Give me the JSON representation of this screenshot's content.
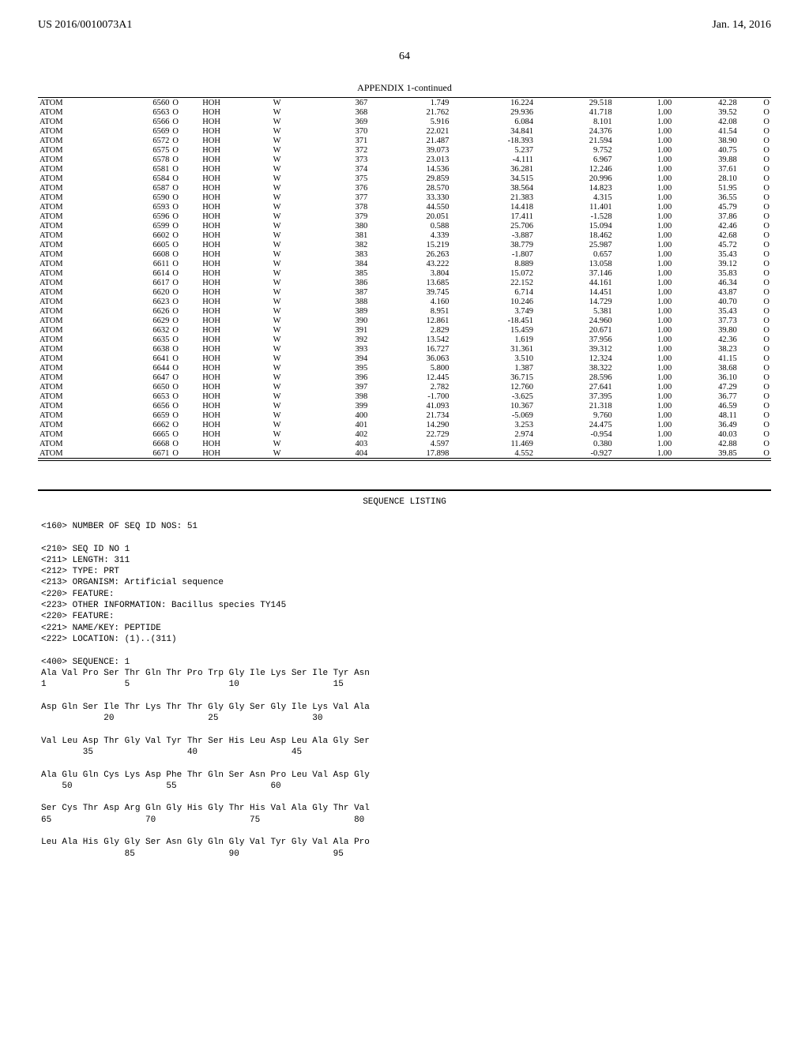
{
  "header": {
    "pub_number": "US 2016/0010073A1",
    "pub_date": "Jan. 14, 2016",
    "page_number": "64"
  },
  "appendix": {
    "title": "APPENDIX 1-continued",
    "rows": [
      [
        "ATOM",
        "6560",
        "O",
        "HOH",
        "W",
        "367",
        "1.749",
        "16.224",
        "29.518",
        "1.00",
        "42.28",
        "O"
      ],
      [
        "ATOM",
        "6563",
        "O",
        "HOH",
        "W",
        "368",
        "21.762",
        "29.936",
        "41.718",
        "1.00",
        "39.52",
        "O"
      ],
      [
        "ATOM",
        "6566",
        "O",
        "HOH",
        "W",
        "369",
        "5.916",
        "6.084",
        "8.101",
        "1.00",
        "42.08",
        "O"
      ],
      [
        "ATOM",
        "6569",
        "O",
        "HOH",
        "W",
        "370",
        "22.021",
        "34.841",
        "24.376",
        "1.00",
        "41.54",
        "O"
      ],
      [
        "ATOM",
        "6572",
        "O",
        "HOH",
        "W",
        "371",
        "21.487",
        "-18.393",
        "21.594",
        "1.00",
        "38.90",
        "O"
      ],
      [
        "ATOM",
        "6575",
        "O",
        "HOH",
        "W",
        "372",
        "39.073",
        "5.237",
        "9.752",
        "1.00",
        "40.75",
        "O"
      ],
      [
        "ATOM",
        "6578",
        "O",
        "HOH",
        "W",
        "373",
        "23.013",
        "-4.111",
        "6.967",
        "1.00",
        "39.88",
        "O"
      ],
      [
        "ATOM",
        "6581",
        "O",
        "HOH",
        "W",
        "374",
        "14.536",
        "36.281",
        "12.246",
        "1.00",
        "37.61",
        "O"
      ],
      [
        "ATOM",
        "6584",
        "O",
        "HOH",
        "W",
        "375",
        "29.859",
        "34.515",
        "20.996",
        "1.00",
        "28.10",
        "O"
      ],
      [
        "ATOM",
        "6587",
        "O",
        "HOH",
        "W",
        "376",
        "28.570",
        "38.564",
        "14.823",
        "1.00",
        "51.95",
        "O"
      ],
      [
        "ATOM",
        "6590",
        "O",
        "HOH",
        "W",
        "377",
        "33.330",
        "21.383",
        "4.315",
        "1.00",
        "36.55",
        "O"
      ],
      [
        "ATOM",
        "6593",
        "O",
        "HOH",
        "W",
        "378",
        "44.550",
        "14.418",
        "11.401",
        "1.00",
        "45.79",
        "O"
      ],
      [
        "ATOM",
        "6596",
        "O",
        "HOH",
        "W",
        "379",
        "20.051",
        "17.411",
        "-1.528",
        "1.00",
        "37.86",
        "O"
      ],
      [
        "ATOM",
        "6599",
        "O",
        "HOH",
        "W",
        "380",
        "0.588",
        "25.706",
        "15.094",
        "1.00",
        "42.46",
        "O"
      ],
      [
        "ATOM",
        "6602",
        "O",
        "HOH",
        "W",
        "381",
        "4.339",
        "-3.887",
        "18.462",
        "1.00",
        "42.68",
        "O"
      ],
      [
        "ATOM",
        "6605",
        "O",
        "HOH",
        "W",
        "382",
        "15.219",
        "38.779",
        "25.987",
        "1.00",
        "45.72",
        "O"
      ],
      [
        "ATOM",
        "6608",
        "O",
        "HOH",
        "W",
        "383",
        "26.263",
        "-1.807",
        "0.657",
        "1.00",
        "35.43",
        "O"
      ],
      [
        "ATOM",
        "6611",
        "O",
        "HOH",
        "W",
        "384",
        "43.222",
        "8.889",
        "13.058",
        "1.00",
        "39.12",
        "O"
      ],
      [
        "ATOM",
        "6614",
        "O",
        "HOH",
        "W",
        "385",
        "3.804",
        "15.072",
        "37.146",
        "1.00",
        "35.83",
        "O"
      ],
      [
        "ATOM",
        "6617",
        "O",
        "HOH",
        "W",
        "386",
        "13.685",
        "22.152",
        "44.161",
        "1.00",
        "46.34",
        "O"
      ],
      [
        "ATOM",
        "6620",
        "O",
        "HOH",
        "W",
        "387",
        "39.745",
        "6.714",
        "14.451",
        "1.00",
        "43.87",
        "O"
      ],
      [
        "ATOM",
        "6623",
        "O",
        "HOH",
        "W",
        "388",
        "4.160",
        "10.246",
        "14.729",
        "1.00",
        "40.70",
        "O"
      ],
      [
        "ATOM",
        "6626",
        "O",
        "HOH",
        "W",
        "389",
        "8.951",
        "3.749",
        "5.381",
        "1.00",
        "35.43",
        "O"
      ],
      [
        "ATOM",
        "6629",
        "O",
        "HOH",
        "W",
        "390",
        "12.861",
        "-18.451",
        "24.960",
        "1.00",
        "37.73",
        "O"
      ],
      [
        "ATOM",
        "6632",
        "O",
        "HOH",
        "W",
        "391",
        "2.829",
        "15.459",
        "20.671",
        "1.00",
        "39.80",
        "O"
      ],
      [
        "ATOM",
        "6635",
        "O",
        "HOH",
        "W",
        "392",
        "13.542",
        "1.619",
        "37.956",
        "1.00",
        "42.36",
        "O"
      ],
      [
        "ATOM",
        "6638",
        "O",
        "HOH",
        "W",
        "393",
        "16.727",
        "31.361",
        "39.312",
        "1.00",
        "38.23",
        "O"
      ],
      [
        "ATOM",
        "6641",
        "O",
        "HOH",
        "W",
        "394",
        "36.063",
        "3.510",
        "12.324",
        "1.00",
        "41.15",
        "O"
      ],
      [
        "ATOM",
        "6644",
        "O",
        "HOH",
        "W",
        "395",
        "5.800",
        "1.387",
        "38.322",
        "1.00",
        "38.68",
        "O"
      ],
      [
        "ATOM",
        "6647",
        "O",
        "HOH",
        "W",
        "396",
        "12.445",
        "36.715",
        "28.596",
        "1.00",
        "36.10",
        "O"
      ],
      [
        "ATOM",
        "6650",
        "O",
        "HOH",
        "W",
        "397",
        "2.782",
        "12.760",
        "27.641",
        "1.00",
        "47.29",
        "O"
      ],
      [
        "ATOM",
        "6653",
        "O",
        "HOH",
        "W",
        "398",
        "-1.700",
        "-3.625",
        "37.395",
        "1.00",
        "36.77",
        "O"
      ],
      [
        "ATOM",
        "6656",
        "O",
        "HOH",
        "W",
        "399",
        "41.093",
        "10.367",
        "21.318",
        "1.00",
        "46.59",
        "O"
      ],
      [
        "ATOM",
        "6659",
        "O",
        "HOH",
        "W",
        "400",
        "21.734",
        "-5.069",
        "9.760",
        "1.00",
        "48.11",
        "O"
      ],
      [
        "ATOM",
        "6662",
        "O",
        "HOH",
        "W",
        "401",
        "14.290",
        "3.253",
        "24.475",
        "1.00",
        "36.49",
        "O"
      ],
      [
        "ATOM",
        "6665",
        "O",
        "HOH",
        "W",
        "402",
        "22.729",
        "2.974",
        "-0.954",
        "1.00",
        "40.03",
        "O"
      ],
      [
        "ATOM",
        "6668",
        "O",
        "HOH",
        "W",
        "403",
        "4.597",
        "11.469",
        "0.380",
        "1.00",
        "42.88",
        "O"
      ],
      [
        "ATOM",
        "6671",
        "O",
        "HOH",
        "W",
        "404",
        "17.898",
        "4.552",
        "-0.927",
        "1.00",
        "39.85",
        "O"
      ]
    ]
  },
  "sequence": {
    "title": "SEQUENCE LISTING",
    "meta": [
      "<160> NUMBER OF SEQ ID NOS: 51",
      "",
      "<210> SEQ ID NO 1",
      "<211> LENGTH: 311",
      "<212> TYPE: PRT",
      "<213> ORGANISM: Artificial sequence",
      "<220> FEATURE:",
      "<223> OTHER INFORMATION: Bacillus species TY145",
      "<220> FEATURE:",
      "<221> NAME/KEY: PEPTIDE",
      "<222> LOCATION: (1)..(311)",
      "",
      "<400> SEQUENCE: 1",
      ""
    ],
    "blocks": [
      {
        "res": "Ala Val Pro Ser Thr Gln Thr Pro Trp Gly Ile Lys Ser Ile Tyr Asn",
        "num": "1               5                   10                  15"
      },
      {
        "res": "Asp Gln Ser Ile Thr Lys Thr Thr Gly Gly Ser Gly Ile Lys Val Ala",
        "num": "            20                  25                  30"
      },
      {
        "res": "Val Leu Asp Thr Gly Val Tyr Thr Ser His Leu Asp Leu Ala Gly Ser",
        "num": "        35                  40                  45"
      },
      {
        "res": "Ala Glu Gln Cys Lys Asp Phe Thr Gln Ser Asn Pro Leu Val Asp Gly",
        "num": "    50                  55                  60"
      },
      {
        "res": "Ser Cys Thr Asp Arg Gln Gly His Gly Thr His Val Ala Gly Thr Val",
        "num": "65                  70                  75                  80"
      },
      {
        "res": "Leu Ala His Gly Gly Ser Asn Gly Gln Gly Val Tyr Gly Val Ala Pro",
        "num": "                85                  90                  95"
      }
    ]
  }
}
